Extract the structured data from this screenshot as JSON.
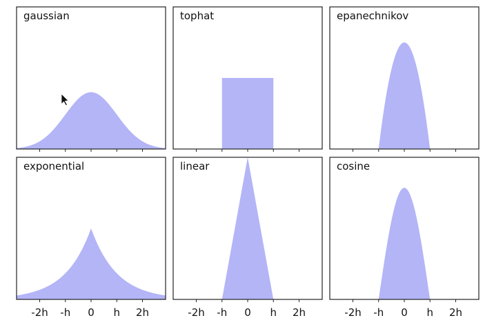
{
  "chart_data": {
    "type": "area",
    "layout": "2x3 grid of small multiples",
    "fill_color": "#b3b5f7",
    "x_axis": {
      "range": [
        -2.9,
        2.9
      ],
      "ticks": [
        -2,
        -1,
        0,
        1,
        2
      ],
      "tick_labels": [
        "-2h",
        "-h",
        "0",
        "h",
        "2h"
      ],
      "tick_labels_shown_on": "bottom row only"
    },
    "y_axis": {
      "range": [
        0,
        1.0
      ],
      "ticks": [],
      "tick_labels": []
    },
    "grid": false,
    "panels": [
      {
        "name": "gaussian",
        "formula": "0.4*exp(-x^2/2) (peak read ≈ 0.40)",
        "x": [
          -2.9,
          -2.5,
          -2,
          -1.5,
          -1,
          -0.5,
          0,
          0.5,
          1,
          1.5,
          2,
          2.5,
          2.9
        ],
        "y": [
          0.006,
          0.018,
          0.054,
          0.13,
          0.243,
          0.353,
          0.4,
          0.353,
          0.243,
          0.13,
          0.054,
          0.018,
          0.006
        ]
      },
      {
        "name": "tophat",
        "x": [
          -1,
          -1,
          1,
          1
        ],
        "y": [
          0,
          0.5,
          0.5,
          0
        ]
      },
      {
        "name": "epanechnikov",
        "x": [
          -1,
          -0.75,
          -0.5,
          -0.25,
          0,
          0.25,
          0.5,
          0.75,
          1
        ],
        "y": [
          0,
          0.328,
          0.563,
          0.703,
          0.75,
          0.703,
          0.563,
          0.328,
          0
        ]
      },
      {
        "name": "exponential",
        "x": [
          -2.9,
          -2.5,
          -2,
          -1.5,
          -1,
          -0.5,
          0,
          0.5,
          1,
          1.5,
          2,
          2.5,
          2.9
        ],
        "y": [
          0.028,
          0.041,
          0.068,
          0.112,
          0.184,
          0.303,
          0.5,
          0.303,
          0.184,
          0.112,
          0.068,
          0.041,
          0.028
        ]
      },
      {
        "name": "linear",
        "x": [
          -1,
          0,
          1
        ],
        "y": [
          0,
          1,
          0
        ]
      },
      {
        "name": "cosine",
        "x": [
          -1,
          -0.75,
          -0.5,
          -0.25,
          0,
          0.25,
          0.5,
          0.75,
          1
        ],
        "y": [
          0,
          0.301,
          0.555,
          0.726,
          0.785,
          0.726,
          0.555,
          0.301,
          0
        ]
      }
    ]
  }
}
